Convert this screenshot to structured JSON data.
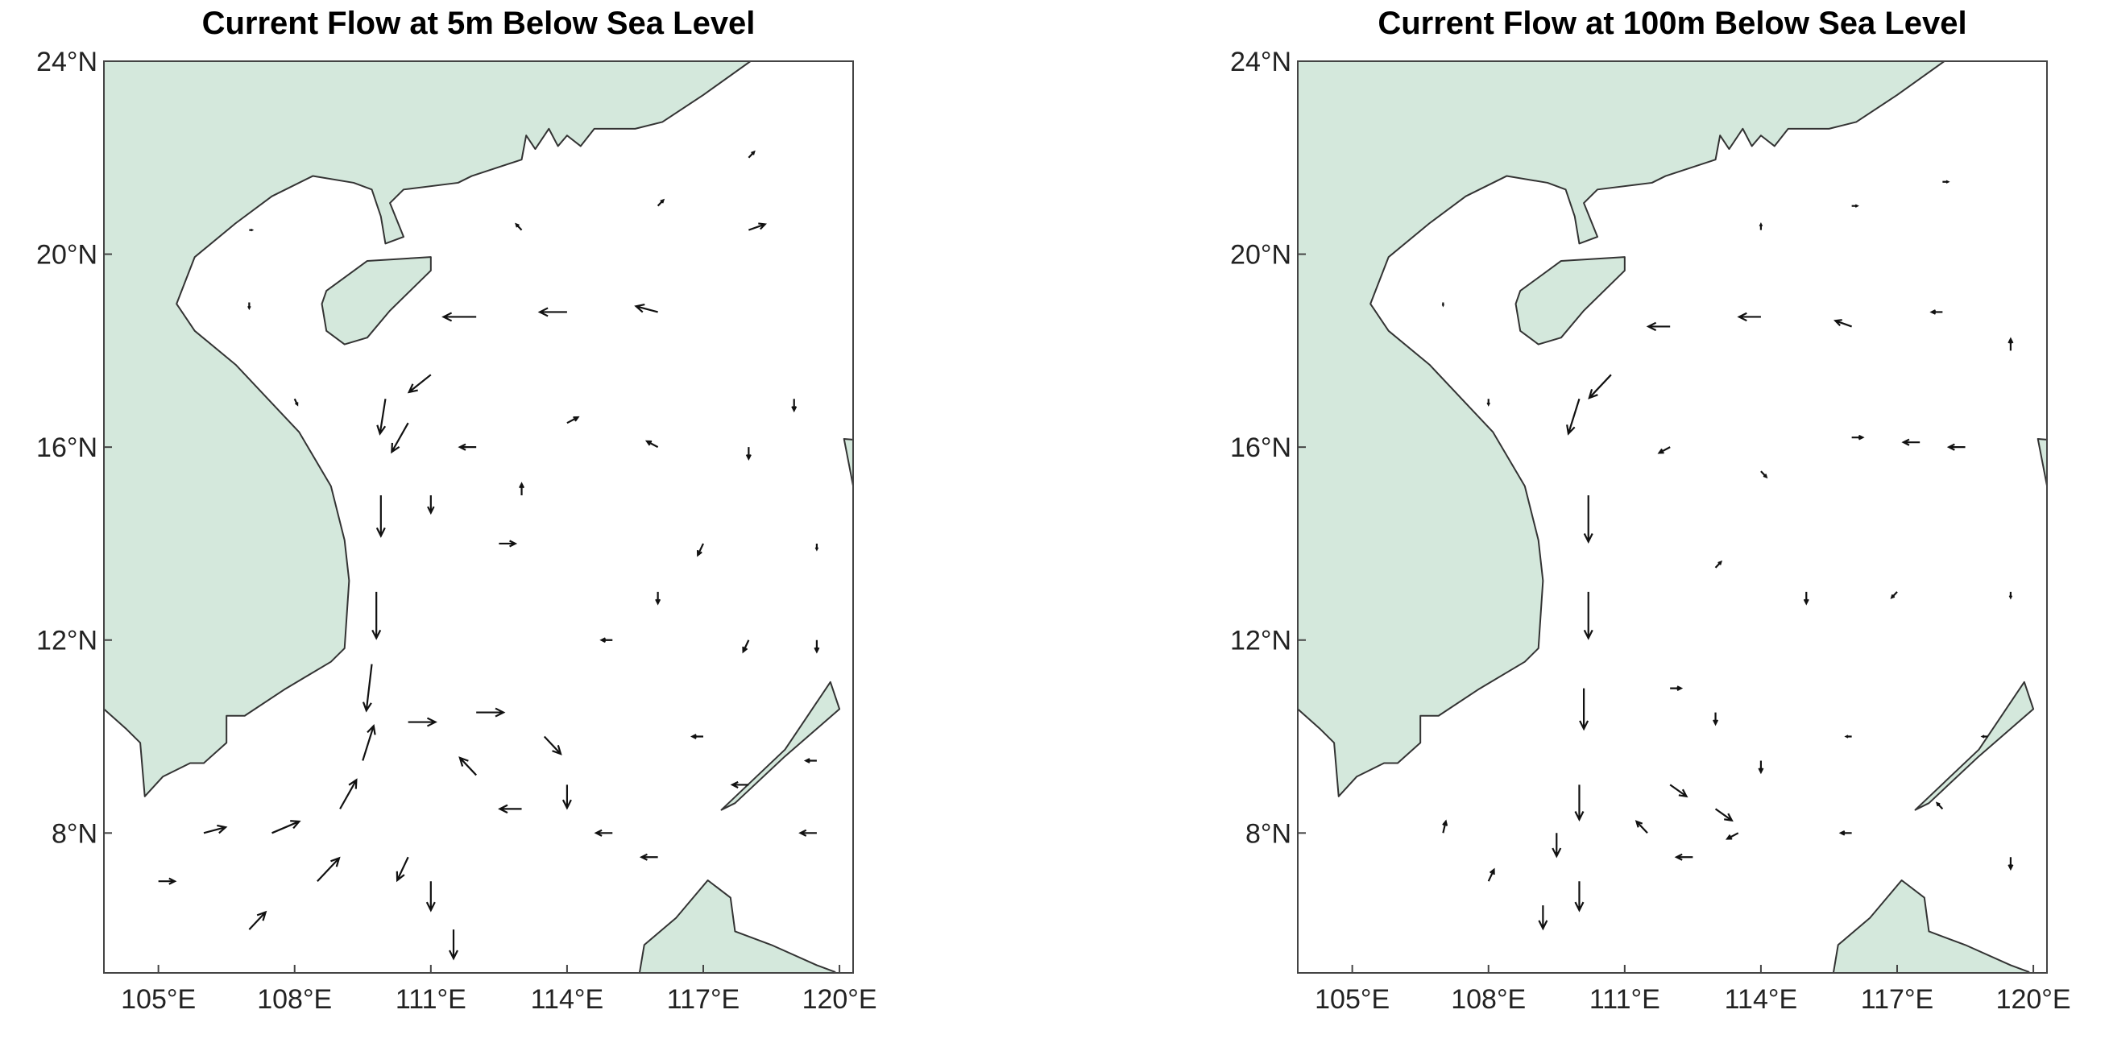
{
  "chart_data": [
    {
      "type": "quiver",
      "title": "Current Flow at 5m Below Sea Level",
      "xlim": [
        103.8,
        120.3
      ],
      "ylim": [
        5.1,
        24
      ],
      "xticks": [
        {
          "value": 105,
          "label": "105°E"
        },
        {
          "value": 108,
          "label": "108°E"
        },
        {
          "value": 111,
          "label": "111°E"
        },
        {
          "value": 114,
          "label": "114°E"
        },
        {
          "value": 117,
          "label": "117°E"
        },
        {
          "value": 120,
          "label": "120°E"
        }
      ],
      "yticks": [
        {
          "value": 8,
          "label": "8°N"
        },
        {
          "value": 12,
          "label": "12°N"
        },
        {
          "value": 16,
          "label": "16°N"
        },
        {
          "value": 20,
          "label": "20°N"
        },
        {
          "value": 24,
          "label": "24°N"
        }
      ],
      "land_color": "#d4e8dc",
      "arrow_color": "#111111",
      "vectors": [
        [
          110,
          17,
          -0.1,
          -0.6
        ],
        [
          109.9,
          15,
          0,
          -0.7
        ],
        [
          109.8,
          13,
          0,
          -0.8
        ],
        [
          109.7,
          11.5,
          -0.1,
          -0.8
        ],
        [
          112,
          18.7,
          -0.6,
          0
        ],
        [
          114,
          18.8,
          -0.5,
          0
        ],
        [
          116,
          18.8,
          -0.4,
          0.1
        ],
        [
          111,
          17.5,
          -0.4,
          -0.3
        ],
        [
          110.5,
          16.5,
          -0.3,
          -0.5
        ],
        [
          111,
          15,
          0,
          -0.3
        ],
        [
          112.5,
          14,
          0.3,
          0
        ],
        [
          113,
          15,
          0,
          0.2
        ],
        [
          112,
          16,
          -0.3,
          0
        ],
        [
          110.5,
          10.3,
          0.5,
          0
        ],
        [
          112,
          10.5,
          0.5,
          0
        ],
        [
          113.5,
          10,
          0.3,
          -0.3
        ],
        [
          114,
          9,
          0,
          -0.4
        ],
        [
          113,
          8.5,
          -0.4,
          0
        ],
        [
          112,
          9.2,
          -0.3,
          0.3
        ],
        [
          106,
          8,
          0.4,
          0.1
        ],
        [
          107.5,
          8,
          0.5,
          0.2
        ],
        [
          108.5,
          7,
          0.4,
          0.4
        ],
        [
          109,
          8.5,
          0.3,
          0.5
        ],
        [
          109.5,
          9.5,
          0.2,
          0.6
        ],
        [
          105,
          7,
          0.3,
          0
        ],
        [
          107,
          6,
          0.3,
          0.3
        ],
        [
          111,
          7,
          0,
          -0.5
        ],
        [
          111.5,
          6,
          0,
          -0.5
        ],
        [
          110.5,
          7.5,
          -0.2,
          -0.4
        ],
        [
          115,
          8,
          -0.3,
          0
        ],
        [
          116,
          7.5,
          -0.3,
          0
        ],
        [
          118,
          9,
          -0.3,
          0
        ],
        [
          119.5,
          8,
          -0.3,
          0
        ],
        [
          119.5,
          9.5,
          -0.2,
          0
        ],
        [
          117,
          10,
          -0.2,
          0
        ],
        [
          116,
          13,
          0,
          -0.2
        ],
        [
          117,
          14,
          -0.1,
          -0.2
        ],
        [
          118,
          16,
          0,
          -0.2
        ],
        [
          119,
          17,
          0,
          -0.2
        ],
        [
          116,
          16,
          -0.2,
          0.1
        ],
        [
          114,
          16.5,
          0.2,
          0.1
        ],
        [
          115,
          12,
          -0.2,
          0
        ],
        [
          118,
          12,
          -0.1,
          -0.2
        ],
        [
          116,
          21,
          0.1,
          0.1
        ],
        [
          118,
          20.5,
          0.3,
          0.1
        ],
        [
          113,
          20.5,
          -0.1,
          0.1
        ],
        [
          118,
          22,
          0.1,
          0.1
        ],
        [
          107,
          19,
          0,
          -0.1
        ],
        [
          108,
          17,
          0.05,
          -0.1
        ],
        [
          107,
          20.5,
          0.05,
          0
        ],
        [
          119.5,
          12,
          0,
          -0.2
        ],
        [
          119.5,
          14,
          0,
          -0.1
        ]
      ]
    },
    {
      "type": "quiver",
      "title": "Current Flow at 100m Below Sea Level",
      "xlim": [
        103.8,
        120.3
      ],
      "ylim": [
        5.1,
        24
      ],
      "xticks": [
        {
          "value": 105,
          "label": "105°E"
        },
        {
          "value": 108,
          "label": "108°E"
        },
        {
          "value": 111,
          "label": "111°E"
        },
        {
          "value": 114,
          "label": "114°E"
        },
        {
          "value": 117,
          "label": "117°E"
        },
        {
          "value": 120,
          "label": "120°E"
        }
      ],
      "yticks": [
        {
          "value": 8,
          "label": "8°N"
        },
        {
          "value": 12,
          "label": "12°N"
        },
        {
          "value": 16,
          "label": "16°N"
        },
        {
          "value": 20,
          "label": "20°N"
        },
        {
          "value": 24,
          "label": "24°N"
        }
      ],
      "land_color": "#d4e8dc",
      "arrow_color": "#111111",
      "vectors": [
        [
          110,
          17,
          -0.2,
          -0.6
        ],
        [
          110.2,
          15,
          0,
          -0.8
        ],
        [
          110.2,
          13,
          0,
          -0.8
        ],
        [
          110.1,
          11,
          0,
          -0.7
        ],
        [
          110,
          9,
          0,
          -0.6
        ],
        [
          110,
          7,
          0,
          -0.5
        ],
        [
          109.5,
          8,
          0,
          -0.4
        ],
        [
          109.2,
          6.5,
          0,
          -0.4
        ],
        [
          110.7,
          17.5,
          -0.4,
          -0.4
        ],
        [
          112,
          18.5,
          -0.4,
          0
        ],
        [
          114,
          18.7,
          -0.4,
          0
        ],
        [
          116,
          18.5,
          -0.3,
          0.1
        ],
        [
          118,
          18.8,
          -0.2,
          0
        ],
        [
          112,
          16,
          -0.2,
          -0.1
        ],
        [
          114,
          15.5,
          0.1,
          -0.1
        ],
        [
          116,
          16.2,
          0.2,
          0
        ],
        [
          117.5,
          16.1,
          -0.3,
          0
        ],
        [
          118.5,
          16,
          -0.3,
          0
        ],
        [
          113,
          13.5,
          0.1,
          0.1
        ],
        [
          115,
          13,
          0,
          -0.2
        ],
        [
          117,
          13,
          -0.1,
          -0.1
        ],
        [
          112,
          11,
          0.2,
          0
        ],
        [
          113,
          10.5,
          0,
          -0.2
        ],
        [
          112,
          9,
          0.3,
          -0.2
        ],
        [
          113,
          8.5,
          0.3,
          -0.2
        ],
        [
          113.5,
          8,
          -0.2,
          -0.1
        ],
        [
          112.5,
          7.5,
          -0.3,
          0
        ],
        [
          111.5,
          8,
          -0.2,
          0.2
        ],
        [
          114,
          9.5,
          0,
          -0.2
        ],
        [
          107,
          8,
          0.05,
          0.2
        ],
        [
          108,
          7,
          0.1,
          0.2
        ],
        [
          116,
          8,
          -0.2,
          0
        ],
        [
          118,
          8.5,
          -0.1,
          0.1
        ],
        [
          119.5,
          7.5,
          0,
          -0.2
        ],
        [
          119,
          10,
          -0.1,
          0
        ],
        [
          116,
          10,
          -0.1,
          0
        ],
        [
          116,
          21,
          0.1,
          0
        ],
        [
          118,
          21.5,
          0.1,
          0
        ],
        [
          114,
          20.5,
          0,
          0.1
        ],
        [
          107,
          19,
          0,
          -0.05
        ],
        [
          108,
          17,
          0,
          -0.1
        ],
        [
          119.5,
          13,
          0,
          -0.1
        ],
        [
          119.5,
          18,
          0,
          0.2
        ]
      ]
    }
  ]
}
